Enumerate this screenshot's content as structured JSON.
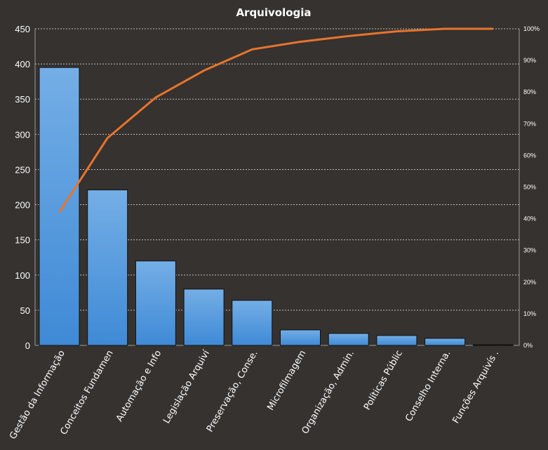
{
  "chart_data": {
    "type": "bar",
    "title": "Arquivologia",
    "categories": [
      "Gestão da Informação",
      "Conceitos Fundamen",
      "Automação e Info",
      "Legislação Arquiví",
      "Preservação, Conse.",
      "Microfilmagem",
      "Organização, Admin.",
      "Políticas Públic",
      "Conselho Interna.",
      "Funções Arquivís ."
    ],
    "series": [
      {
        "type": "bar",
        "values": [
          395,
          221,
          120,
          80,
          64,
          22,
          17,
          14,
          10,
          1
        ]
      },
      {
        "type": "line",
        "axis": "right",
        "values": [
          0.42,
          0.655,
          0.783,
          0.868,
          0.935,
          0.959,
          0.977,
          0.992,
          1.0,
          1.0
        ]
      }
    ],
    "ylim": [
      0,
      450
    ],
    "yticks": [
      "0",
      "50",
      "100",
      "150",
      "200",
      "250",
      "300",
      "350",
      "400",
      "450"
    ],
    "y2lim": [
      0,
      1
    ],
    "y2ticks": [
      "0%",
      "10%",
      "20%",
      "30%",
      "40%",
      "50%",
      "60%",
      "70%",
      "80%",
      "90%",
      "100%"
    ],
    "grid": true,
    "colors": {
      "background": "#353230",
      "bar": "#4a90d9",
      "bar_light": "#6aa9e6",
      "line": "#e8742c",
      "grid": "#bdbdbd",
      "text": "#ffffff"
    }
  }
}
